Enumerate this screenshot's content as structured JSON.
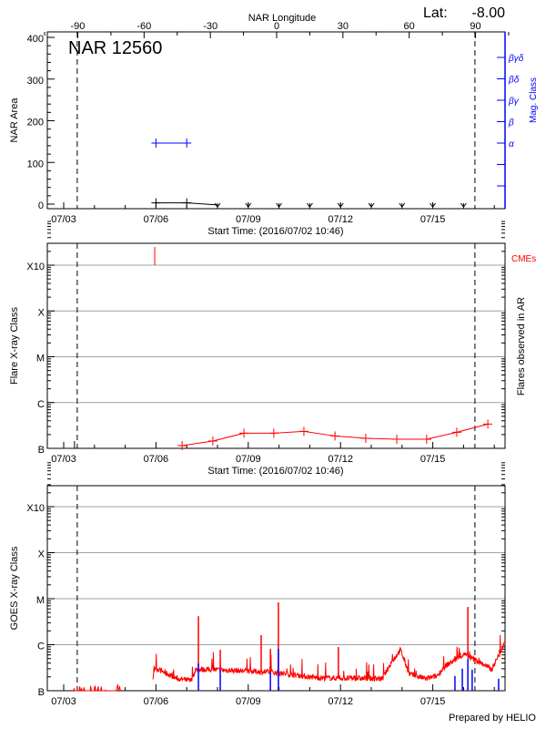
{
  "header": {
    "lat_label": "Lat:",
    "lat_value": "-8.00",
    "footer": "Prepared by HELIO"
  },
  "colors": {
    "flare": "#ff0000",
    "goes": "#ff0000",
    "goes_flares": "#0000ff",
    "mag": "#0000ff",
    "grid": "#a0a0a0",
    "axis": "#000000"
  },
  "chart_data": [
    {
      "type": "line",
      "title": "NAR 12560",
      "top_axis_title": "NAR Longitude",
      "top_ticks": [
        "-90",
        "-60",
        "-30",
        "0",
        "30",
        "60",
        "90"
      ],
      "top_tick_values": [
        -90,
        -60,
        -30,
        0,
        30,
        60,
        90
      ],
      "xlabel": "Start Time: (2016/07/02 10:46)",
      "x_ticks": [
        "07/03",
        "07/06",
        "07/09",
        "07/12",
        "07/15"
      ],
      "x_tick_days": [
        0,
        3,
        6,
        9,
        12
      ],
      "xlim_days": [
        -0.55,
        14.35
      ],
      "limb_days": [
        0.44,
        13.37
      ],
      "ylabel": "NAR Area",
      "y_ticks": [
        "0",
        "100",
        "200",
        "300",
        "400"
      ],
      "y_tick_values": [
        0,
        100,
        200,
        300,
        400
      ],
      "ylim": [
        0,
        413
      ],
      "area_series": {
        "days": [
          3.0,
          4.0,
          5.0
        ],
        "values": [
          3,
          3,
          -2
        ]
      },
      "below_range_days": [
        5.0,
        6.0,
        7.0,
        8.0,
        9.0,
        10.0,
        11.0,
        12.0,
        13.0
      ],
      "y2label": "Mag. Class",
      "mag_classes": [
        "α",
        "β",
        "βγ",
        "βδ",
        "βγδ"
      ],
      "mag_series": {
        "days": [
          3.0,
          4.0
        ],
        "class_index": [
          0,
          0
        ]
      }
    },
    {
      "type": "line",
      "xlabel": "Start Time: (2016/07/02 10:46)",
      "x_ticks": [
        "07/03",
        "07/06",
        "07/09",
        "07/12",
        "07/15"
      ],
      "x_tick_days": [
        0,
        3,
        6,
        9,
        12
      ],
      "ylabel": "Flare X-ray Class",
      "y_ticks": [
        "B",
        "C",
        "M",
        "X",
        "X10"
      ],
      "y_tick_log_flux": [
        -7,
        -6,
        -5,
        -4,
        -3
      ],
      "ylim_log_flux": [
        -7,
        -2.45
      ],
      "y2label": "Flares observed in AR",
      "cme_label": "CMEs",
      "cme_days": [
        2.96
      ],
      "flare_marker_days": [
        0.35
      ],
      "series": [
        {
          "name": "Flares",
          "days": [
            3.85,
            4.85,
            5.86,
            6.83,
            7.81,
            8.82,
            9.82,
            10.83,
            11.8,
            12.78,
            13.79
          ],
          "log_flux": [
            -6.94,
            -6.84,
            -6.67,
            -6.67,
            -6.63,
            -6.73,
            -6.78,
            -6.8,
            -6.8,
            -6.65,
            -6.47
          ]
        }
      ]
    },
    {
      "type": "line",
      "x_ticks": [
        "07/03",
        "07/06",
        "07/09",
        "07/12",
        "07/15"
      ],
      "x_tick_days": [
        0,
        3,
        6,
        9,
        12
      ],
      "ylabel": "GOES X-ray Class",
      "y_ticks": [
        "B",
        "C",
        "M",
        "X",
        "X10"
      ],
      "y_tick_log_flux": [
        -7,
        -6,
        -5,
        -4,
        -3
      ],
      "ylim_log_flux": [
        -7,
        -2.45
      ],
      "goes_baseline": {
        "days": [
          2.9,
          2.96,
          3.7,
          4.14,
          4.29,
          4.73,
          5.62,
          6.8,
          7.25,
          8.28,
          10.36,
          10.65,
          10.95,
          11.24,
          11.78,
          12.13,
          12.43,
          13.02,
          13.61,
          13.91,
          14.35
        ],
        "log_flux": [
          -6.8,
          -6.5,
          -6.74,
          -6.78,
          -6.54,
          -6.54,
          -6.56,
          -6.6,
          -6.64,
          -6.72,
          -6.74,
          -6.39,
          -6.11,
          -6.64,
          -6.74,
          -6.68,
          -6.45,
          -6.21,
          -6.41,
          -6.54,
          -5.95
        ]
      },
      "goes_early_days": [
        0.3,
        1.9
      ],
      "goes_peaks": {
        "days": [
          4.38,
          5.09,
          6.42,
          6.72,
          6.98,
          8.93,
          12.72,
          13.14,
          14.17
        ],
        "log_flux": [
          -5.38,
          -6.11,
          -5.79,
          -6.09,
          -5.08,
          -6.05,
          -6.25,
          -5.18,
          -6.11
        ]
      },
      "flare_bars": {
        "days": [
          4.38,
          5.09,
          6.72,
          6.98,
          12.72,
          12.96,
          13.14,
          13.28,
          14.14
        ],
        "log_flux": [
          -6.41,
          -6.54,
          -6.6,
          -6.09,
          -6.68,
          -6.52,
          -6.31,
          -6.54,
          -6.74
        ]
      }
    }
  ]
}
